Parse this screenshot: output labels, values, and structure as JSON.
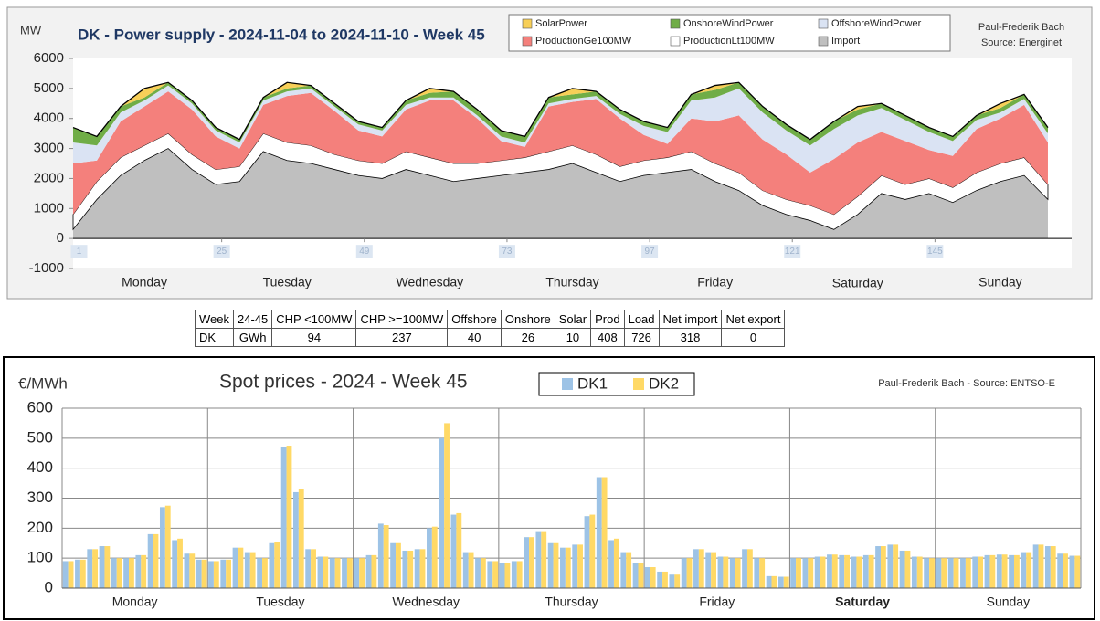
{
  "chart_data": [
    {
      "type": "area",
      "title": "DK - Power supply - 2024-11-04 to 2024-11-10 - Week 45",
      "y_label": "MW",
      "author": "Paul-Frederik Bach",
      "source": "Source: Energinet",
      "day_labels": [
        "Monday",
        "Tuesday",
        "Wednesday",
        "Thursday",
        "Friday",
        "Saturday",
        "Sunday"
      ],
      "x": [
        0,
        4,
        8,
        12,
        16,
        20,
        24,
        28,
        32,
        36,
        40,
        44,
        48,
        52,
        56,
        60,
        64,
        68,
        72,
        76,
        80,
        84,
        88,
        92,
        96,
        100,
        104,
        108,
        112,
        116,
        120,
        124,
        128,
        132,
        136,
        140,
        144,
        148,
        152,
        156,
        160,
        164
      ],
      "xlim": [
        0,
        168
      ],
      "xticks": [
        1,
        25,
        49,
        73,
        97,
        121,
        145
      ],
      "ylim": [
        -1000,
        6000
      ],
      "yticks": [
        -1000,
        0,
        1000,
        2000,
        3000,
        4000,
        5000,
        6000
      ],
      "grid": false,
      "series": [
        {
          "name": "SolarPower",
          "color": "#f7cf58",
          "values": [
            0,
            0,
            0,
            300,
            0,
            0,
            0,
            0,
            0,
            200,
            0,
            0,
            0,
            0,
            0,
            150,
            0,
            0,
            0,
            0,
            0,
            200,
            0,
            0,
            0,
            0,
            0,
            150,
            0,
            0,
            0,
            0,
            0,
            100,
            0,
            0,
            0,
            0,
            0,
            150,
            0,
            0
          ]
        },
        {
          "name": "OnshoreWindPower",
          "color": "#70ad47",
          "values": [
            500,
            300,
            200,
            100,
            100,
            100,
            100,
            100,
            100,
            100,
            100,
            100,
            100,
            100,
            150,
            150,
            200,
            200,
            200,
            200,
            200,
            150,
            150,
            150,
            150,
            150,
            200,
            250,
            200,
            200,
            200,
            200,
            250,
            200,
            150,
            150,
            150,
            150,
            150,
            150,
            150,
            200
          ]
        },
        {
          "name": "OffshoreWindPower",
          "color": "#dae3f3",
          "values": [
            700,
            500,
            300,
            200,
            200,
            200,
            200,
            200,
            150,
            150,
            150,
            150,
            200,
            200,
            150,
            100,
            100,
            100,
            150,
            150,
            100,
            100,
            100,
            150,
            300,
            400,
            600,
            800,
            900,
            900,
            800,
            900,
            1000,
            900,
            800,
            700,
            600,
            500,
            300,
            200,
            200,
            300
          ]
        },
        {
          "name": "ProductionGe100MW",
          "color": "#f4807c",
          "values": [
            1700,
            700,
            1200,
            1300,
            1400,
            1500,
            1100,
            600,
            950,
            1550,
            1750,
            1450,
            1000,
            900,
            1400,
            1900,
            2100,
            1500,
            650,
            350,
            1500,
            1450,
            1850,
            1600,
            850,
            450,
            1100,
            1400,
            1900,
            1700,
            1500,
            1100,
            1850,
            1800,
            1450,
            1450,
            950,
            1050,
            1450,
            1500,
            1750,
            1400
          ]
        },
        {
          "name": "ProductionLt100MW",
          "color": "#ffffff",
          "values": [
            500,
            600,
            600,
            500,
            500,
            500,
            500,
            500,
            600,
            600,
            600,
            500,
            500,
            500,
            600,
            600,
            600,
            500,
            500,
            500,
            600,
            600,
            600,
            500,
            500,
            500,
            600,
            600,
            600,
            500,
            500,
            500,
            500,
            600,
            600,
            500,
            500,
            500,
            600,
            600,
            600,
            500
          ]
        },
        {
          "name": "Import",
          "color": "#bfbfbf",
          "values": [
            300,
            1300,
            2100,
            2600,
            3000,
            2300,
            1800,
            1900,
            2900,
            2600,
            2500,
            2300,
            2100,
            2000,
            2300,
            2100,
            1900,
            2000,
            2100,
            2200,
            2300,
            2500,
            2200,
            1900,
            2100,
            2200,
            2300,
            1900,
            1600,
            1100,
            800,
            600,
            300,
            800,
            1500,
            1300,
            1500,
            1200,
            1600,
            1900,
            2100,
            1300
          ]
        }
      ]
    },
    {
      "type": "bar",
      "title": "Spot prices - 2024 - Week 45",
      "y_label": "€/MWh",
      "source": "Paul-Frederik Bach - Source: ENTSO-E",
      "day_labels": [
        "Monday",
        "Tuesday",
        "Wednesday",
        "Thursday",
        "Friday",
        "Saturday",
        "Sunday"
      ],
      "ylim": [
        0,
        600
      ],
      "yticks": [
        0,
        100,
        200,
        300,
        400,
        500,
        600
      ],
      "grid": true,
      "series": [
        {
          "name": "DK1",
          "color": "#9dc3e6",
          "values": [
            90,
            95,
            130,
            140,
            100,
            100,
            110,
            180,
            270,
            160,
            115,
            95,
            90,
            95,
            135,
            120,
            100,
            150,
            470,
            320,
            130,
            105,
            100,
            100,
            100,
            110,
            215,
            150,
            125,
            130,
            200,
            500,
            245,
            120,
            100,
            90,
            85,
            90,
            170,
            190,
            150,
            135,
            145,
            240,
            370,
            160,
            120,
            85,
            70,
            55,
            45,
            100,
            130,
            120,
            105,
            100,
            130,
            100,
            40,
            38,
            100,
            100,
            105,
            112,
            110,
            105,
            110,
            140,
            145,
            125,
            105,
            100,
            100,
            100,
            100,
            105,
            110,
            112,
            110,
            120,
            145,
            140,
            115,
            108
          ]
        },
        {
          "name": "DK2",
          "color": "#ffd966",
          "values": [
            90,
            95,
            130,
            140,
            100,
            100,
            110,
            180,
            275,
            165,
            115,
            95,
            90,
            95,
            135,
            120,
            100,
            155,
            475,
            330,
            130,
            105,
            100,
            100,
            100,
            110,
            210,
            150,
            125,
            130,
            205,
            550,
            250,
            120,
            100,
            90,
            85,
            90,
            170,
            190,
            150,
            135,
            145,
            245,
            370,
            165,
            120,
            85,
            70,
            55,
            45,
            100,
            130,
            120,
            105,
            100,
            130,
            100,
            40,
            38,
            100,
            100,
            105,
            112,
            110,
            105,
            110,
            140,
            145,
            125,
            105,
            100,
            100,
            100,
            100,
            105,
            110,
            112,
            110,
            120,
            145,
            140,
            115,
            108
          ]
        }
      ]
    }
  ],
  "table": {
    "header": [
      "Week",
      "24-45",
      "CHP <100MW",
      "CHP >=100MW",
      "Offshore",
      "Onshore",
      "Solar",
      "Prod",
      "Load",
      "Net import",
      "Net export"
    ],
    "row": [
      "DK",
      "GWh",
      94,
      237,
      40,
      26,
      10,
      408,
      726,
      318,
      0
    ]
  }
}
